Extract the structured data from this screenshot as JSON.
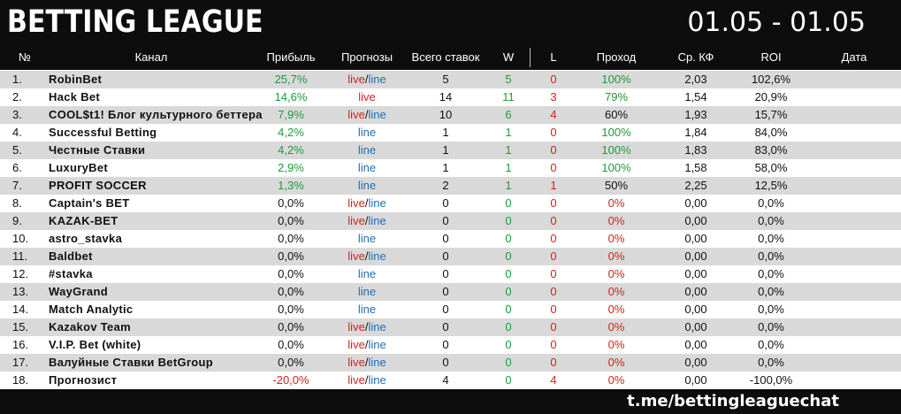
{
  "title": "BETTING LEAGUE",
  "date_range": "01.05 - 01.05",
  "headers": {
    "num": "№",
    "channel": "Канал",
    "profit": "Прибыль",
    "forecasts": "Прогнозы",
    "total": "Всего ставок",
    "w": "W",
    "l": "L",
    "pass": "Проход",
    "kf": "Ср. КФ",
    "roi": "ROI",
    "date": "Дата"
  },
  "colors": {
    "background_dark": "#0d0d0d",
    "row_stripe": "#d9d9d9",
    "green": "#1f9a3a",
    "red": "#d42020",
    "blue": "#1d6fb8"
  },
  "rows": [
    {
      "num": "1.",
      "name": "RobinBet",
      "profit": "25,7%",
      "profit_color": "green",
      "fc": "live_line",
      "total": "5",
      "w": "5",
      "l": "0",
      "pass": "100%",
      "pass_color": "green",
      "kf": "2,03",
      "roi": "102,6%"
    },
    {
      "num": "2.",
      "name": "Hack Bet",
      "profit": "14,6%",
      "profit_color": "green",
      "fc": "live",
      "total": "14",
      "w": "11",
      "l": "3",
      "pass": "79%",
      "pass_color": "green",
      "kf": "1,54",
      "roi": "20,9%"
    },
    {
      "num": "3.",
      "name": "COOL$t1! Блог культурного беттера",
      "profit": "7,9%",
      "profit_color": "green",
      "fc": "live_line",
      "total": "10",
      "w": "6",
      "l": "4",
      "pass": "60%",
      "pass_color": "black",
      "kf": "1,93",
      "roi": "15,7%"
    },
    {
      "num": "4.",
      "name": "Successful Betting",
      "profit": "4,2%",
      "profit_color": "green",
      "fc": "line",
      "total": "1",
      "w": "1",
      "l": "0",
      "pass": "100%",
      "pass_color": "green",
      "kf": "1,84",
      "roi": "84,0%"
    },
    {
      "num": "5.",
      "name": "Честные Ставки",
      "profit": "4,2%",
      "profit_color": "green",
      "fc": "line",
      "total": "1",
      "w": "1",
      "l": "0",
      "pass": "100%",
      "pass_color": "green",
      "kf": "1,83",
      "roi": "83,0%"
    },
    {
      "num": "6.",
      "name": "LuxuryBet",
      "profit": "2,9%",
      "profit_color": "green",
      "fc": "line",
      "total": "1",
      "w": "1",
      "l": "0",
      "pass": "100%",
      "pass_color": "green",
      "kf": "1,58",
      "roi": "58,0%"
    },
    {
      "num": "7.",
      "name": "PROFIT SOCCER",
      "profit": "1,3%",
      "profit_color": "green",
      "fc": "line",
      "total": "2",
      "w": "1",
      "l": "1",
      "pass": "50%",
      "pass_color": "black",
      "kf": "2,25",
      "roi": "12,5%"
    },
    {
      "num": "8.",
      "name": "Captain's BET",
      "profit": "0,0%",
      "profit_color": "black",
      "fc": "live_line",
      "total": "0",
      "w": "0",
      "l": "0",
      "pass": "0%",
      "pass_color": "red",
      "kf": "0,00",
      "roi": "0,0%"
    },
    {
      "num": "9.",
      "name": "KAZAK-BET",
      "profit": "0,0%",
      "profit_color": "black",
      "fc": "live_line",
      "total": "0",
      "w": "0",
      "l": "0",
      "pass": "0%",
      "pass_color": "red",
      "kf": "0,00",
      "roi": "0,0%"
    },
    {
      "num": "10.",
      "name": "astro_stavka",
      "profit": "0,0%",
      "profit_color": "black",
      "fc": "line",
      "total": "0",
      "w": "0",
      "l": "0",
      "pass": "0%",
      "pass_color": "red",
      "kf": "0,00",
      "roi": "0,0%"
    },
    {
      "num": "11.",
      "name": "Baldbet",
      "profit": "0,0%",
      "profit_color": "black",
      "fc": "live_line",
      "total": "0",
      "w": "0",
      "l": "0",
      "pass": "0%",
      "pass_color": "red",
      "kf": "0,00",
      "roi": "0,0%"
    },
    {
      "num": "12.",
      "name": "#stavka",
      "profit": "0,0%",
      "profit_color": "black",
      "fc": "line",
      "total": "0",
      "w": "0",
      "l": "0",
      "pass": "0%",
      "pass_color": "red",
      "kf": "0,00",
      "roi": "0,0%"
    },
    {
      "num": "13.",
      "name": "WayGrand",
      "profit": "0,0%",
      "profit_color": "black",
      "fc": "line",
      "total": "0",
      "w": "0",
      "l": "0",
      "pass": "0%",
      "pass_color": "red",
      "kf": "0,00",
      "roi": "0,0%"
    },
    {
      "num": "14.",
      "name": "Match Analytic",
      "profit": "0,0%",
      "profit_color": "black",
      "fc": "line",
      "total": "0",
      "w": "0",
      "l": "0",
      "pass": "0%",
      "pass_color": "red",
      "kf": "0,00",
      "roi": "0,0%"
    },
    {
      "num": "15.",
      "name": "Kazakov Team",
      "profit": "0,0%",
      "profit_color": "black",
      "fc": "live_line",
      "total": "0",
      "w": "0",
      "l": "0",
      "pass": "0%",
      "pass_color": "red",
      "kf": "0,00",
      "roi": "0,0%"
    },
    {
      "num": "16.",
      "name": "V.I.P. Bet (white)",
      "profit": "0,0%",
      "profit_color": "black",
      "fc": "live_line",
      "total": "0",
      "w": "0",
      "l": "0",
      "pass": "0%",
      "pass_color": "red",
      "kf": "0,00",
      "roi": "0,0%"
    },
    {
      "num": "17.",
      "name": "Валуйные Ставки BetGroup",
      "profit": "0,0%",
      "profit_color": "black",
      "fc": "live_line",
      "total": "0",
      "w": "0",
      "l": "0",
      "pass": "0%",
      "pass_color": "red",
      "kf": "0,00",
      "roi": "0,0%"
    },
    {
      "num": "18.",
      "name": "Прогнозист",
      "profit": "-20,0%",
      "profit_color": "red",
      "fc": "live_line",
      "total": "4",
      "w": "0",
      "l": "4",
      "pass": "0%",
      "pass_color": "red",
      "kf": "0,00",
      "roi": "-100,0%"
    }
  ],
  "forecast_words": {
    "live": "live",
    "sep": "/",
    "line": "line"
  },
  "footer": {
    "chat_link": "t.me/bettingleaguechat"
  }
}
